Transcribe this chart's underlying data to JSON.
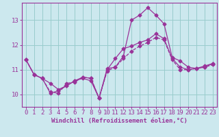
{
  "xlabel": "Windchill (Refroidissement éolien,°C)",
  "bg_color": "#cce8ee",
  "line_color": "#993399",
  "grid_color": "#99cccc",
  "axis_color": "#993399",
  "xlim": [
    -0.5,
    23.5
  ],
  "ylim": [
    9.5,
    13.7
  ],
  "yticks": [
    10,
    11,
    12,
    13
  ],
  "xticks": [
    0,
    1,
    2,
    3,
    4,
    5,
    6,
    7,
    8,
    9,
    10,
    11,
    12,
    13,
    14,
    15,
    16,
    17,
    18,
    19,
    20,
    21,
    22,
    23
  ],
  "series1_x": [
    0,
    1,
    2,
    3,
    4,
    5,
    6,
    7,
    8,
    9,
    10,
    11,
    12,
    13,
    14,
    15,
    16,
    17,
    18,
    19,
    20,
    21,
    22,
    23
  ],
  "series1_y": [
    11.4,
    10.8,
    10.65,
    10.05,
    10.15,
    10.35,
    10.55,
    10.65,
    10.55,
    9.85,
    11.05,
    11.1,
    11.55,
    13.0,
    13.2,
    13.5,
    13.2,
    12.85,
    11.5,
    11.35,
    11.1,
    11.05,
    11.1,
    11.25
  ],
  "series2_x": [
    0,
    1,
    2,
    3,
    4,
    5,
    6,
    7,
    8,
    9,
    10,
    11,
    12,
    13,
    14,
    15,
    16,
    17,
    18,
    19,
    20,
    21,
    22,
    23
  ],
  "series2_y": [
    11.4,
    10.8,
    10.65,
    10.45,
    10.2,
    10.35,
    10.55,
    10.7,
    10.65,
    9.85,
    11.0,
    11.45,
    11.85,
    11.95,
    12.1,
    12.2,
    12.45,
    12.25,
    11.45,
    11.1,
    11.0,
    11.05,
    11.15,
    11.25
  ],
  "series3_x": [
    0,
    1,
    2,
    3,
    4,
    5,
    6,
    7,
    8,
    9,
    10,
    11,
    12,
    13,
    14,
    15,
    16,
    17,
    18,
    19,
    20,
    21,
    22,
    23
  ],
  "series3_y": [
    11.4,
    10.8,
    10.65,
    10.1,
    10.05,
    10.45,
    10.5,
    10.7,
    10.65,
    9.85,
    10.95,
    11.1,
    11.45,
    11.75,
    11.95,
    12.1,
    12.3,
    12.2,
    11.4,
    11.0,
    11.0,
    11.05,
    11.1,
    11.2
  ],
  "xlabel_fontsize": 6.5,
  "tick_fontsize": 6.5,
  "marker_size": 2.5
}
